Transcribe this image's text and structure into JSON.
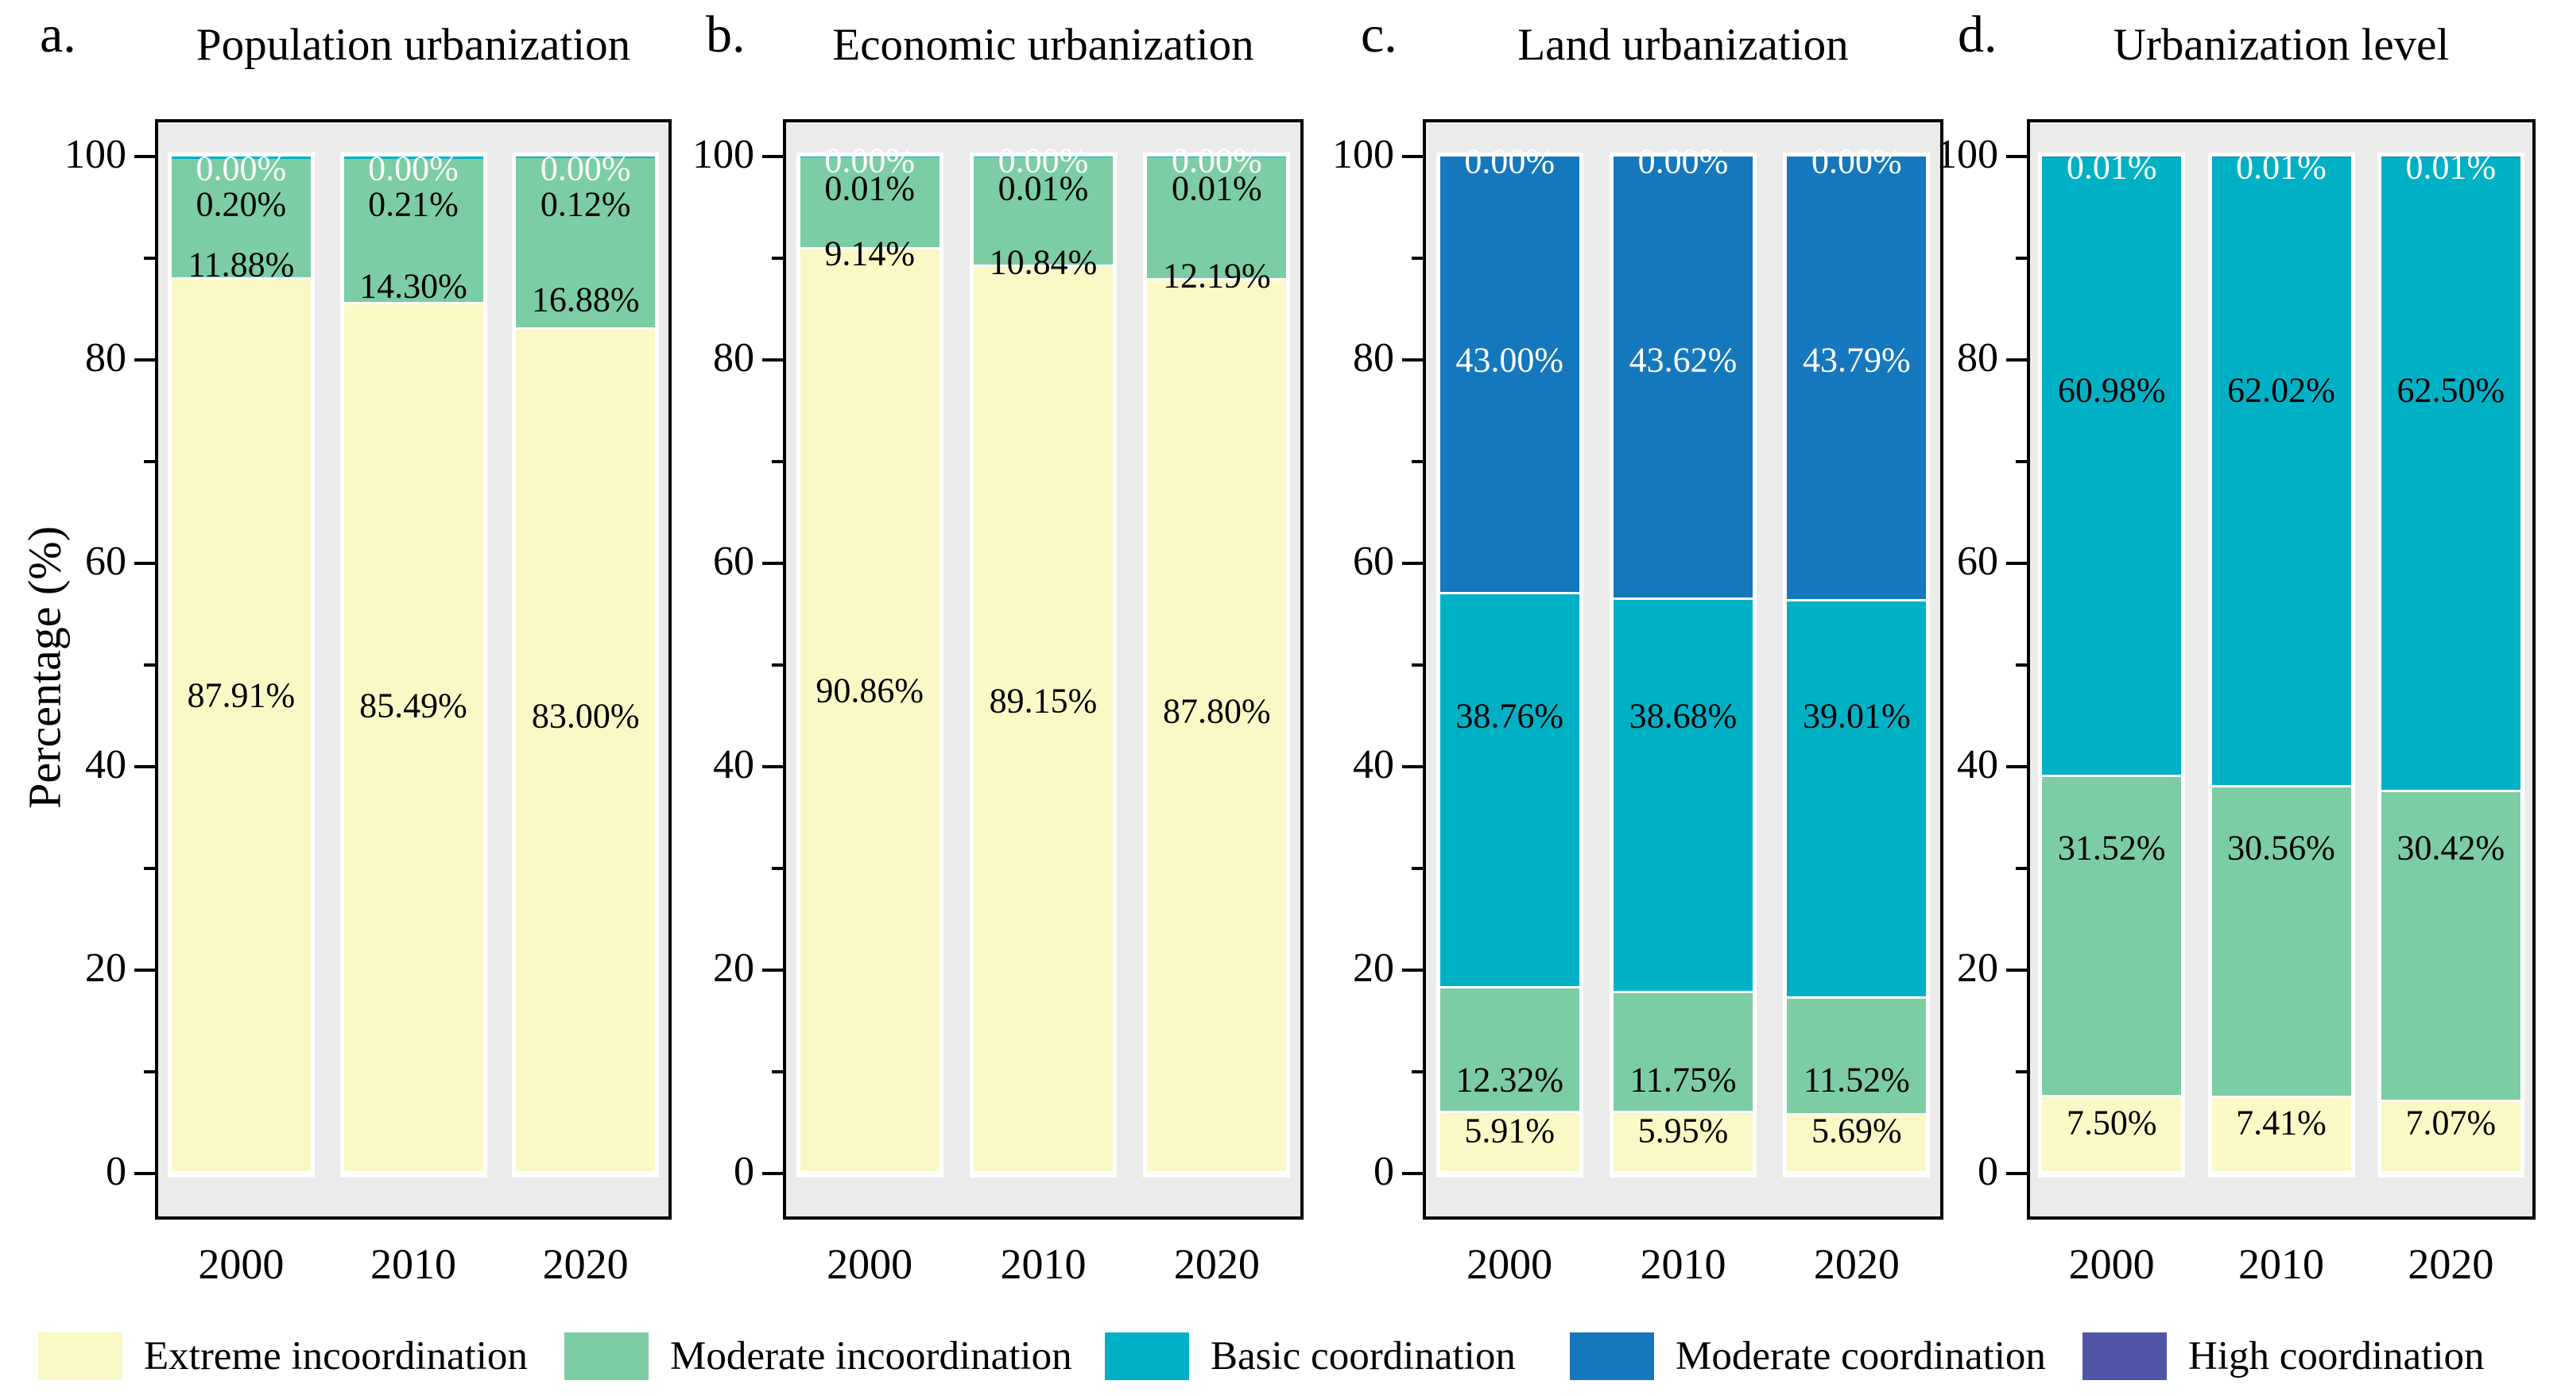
{
  "figure": {
    "y_axis_title": "Percentage (%)",
    "plot_background": "#ebebeb",
    "panel_border_color": "#000000",
    "bar_outline_color": "#ffffff",
    "colors": {
      "extreme_incoordination": "#faf9c6",
      "moderate_incoordination": "#7ccda4",
      "basic_coordination": "#00b1c6",
      "moderate_coordination": "#1678bc",
      "high_coordination": "#4f56a8"
    }
  },
  "chart_data": [
    {
      "type": "bar",
      "stacked": true,
      "panel_letter": "a.",
      "title": "Population urbanization",
      "categories": [
        "2000",
        "2010",
        "2020"
      ],
      "xlabel": "",
      "ylabel": "Percentage (%)",
      "ylim": [
        0,
        100
      ],
      "yticks_major": [
        0,
        20,
        40,
        60,
        80,
        100
      ],
      "yticks_minor": [
        10,
        30,
        50,
        70,
        90
      ],
      "legend_position": "bottom",
      "series": [
        {
          "name": "Extreme incoordination",
          "color_key": "extreme_incoordination",
          "values": [
            87.91,
            85.49,
            83.0
          ]
        },
        {
          "name": "Moderate incoordination",
          "color_key": "moderate_incoordination",
          "values": [
            11.88,
            14.3,
            16.88
          ]
        },
        {
          "name": "Basic coordination",
          "color_key": "basic_coordination",
          "values": [
            0.2,
            0.21,
            0.12
          ]
        },
        {
          "name": "Moderate coordination",
          "color_key": "moderate_coordination",
          "values": [
            0.0,
            0.0,
            0.0
          ]
        },
        {
          "name": "High coordination",
          "color_key": "high_coordination",
          "values": [
            0.0,
            0.0,
            0.0
          ]
        }
      ],
      "bar_labels": [
        [
          {
            "text": "0.00%",
            "color": "#ffffff",
            "pos": 1.2
          },
          {
            "text": "0.20%",
            "color": "#000000",
            "pos": 4.7
          },
          {
            "text": "11.88%",
            "color": "#000000",
            "pos": 10.6
          },
          {
            "text": "87.91%",
            "color": "#000000",
            "pos": 53.0
          }
        ],
        [
          {
            "text": "0.00%",
            "color": "#ffffff",
            "pos": 1.2
          },
          {
            "text": "0.21%",
            "color": "#000000",
            "pos": 4.7
          },
          {
            "text": "14.30%",
            "color": "#000000",
            "pos": 12.7
          },
          {
            "text": "85.49%",
            "color": "#000000",
            "pos": 54.0
          }
        ],
        [
          {
            "text": "0.00%",
            "color": "#ffffff",
            "pos": 1.2
          },
          {
            "text": "0.12%",
            "color": "#000000",
            "pos": 4.7
          },
          {
            "text": "16.88%",
            "color": "#000000",
            "pos": 14.1
          },
          {
            "text": "83.00%",
            "color": "#000000",
            "pos": 55.0
          }
        ]
      ]
    },
    {
      "type": "bar",
      "stacked": true,
      "panel_letter": "b.",
      "title": "Economic urbanization",
      "categories": [
        "2000",
        "2010",
        "2020"
      ],
      "xlabel": "",
      "ylabel": "Percentage (%)",
      "ylim": [
        0,
        100
      ],
      "yticks_major": [
        0,
        20,
        40,
        60,
        80,
        100
      ],
      "yticks_minor": [
        10,
        30,
        50,
        70,
        90
      ],
      "legend_position": "bottom",
      "series": [
        {
          "name": "Extreme incoordination",
          "color_key": "extreme_incoordination",
          "values": [
            90.86,
            89.15,
            87.8
          ]
        },
        {
          "name": "Moderate incoordination",
          "color_key": "moderate_incoordination",
          "values": [
            9.14,
            10.84,
            12.19
          ]
        },
        {
          "name": "Basic coordination",
          "color_key": "basic_coordination",
          "values": [
            0.01,
            0.01,
            0.01
          ]
        },
        {
          "name": "Moderate coordination",
          "color_key": "moderate_coordination",
          "values": [
            0.0,
            0.0,
            0.0
          ]
        },
        {
          "name": "High coordination",
          "color_key": "high_coordination",
          "values": [
            0.0,
            0.0,
            0.0
          ]
        }
      ],
      "bar_labels": [
        [
          {
            "text": "0.00%",
            "color": "#ffffff",
            "pos": 0.4
          },
          {
            "text": "0.01%",
            "color": "#000000",
            "pos": 3.1
          },
          {
            "text": "9.14%",
            "color": "#000000",
            "pos": 9.5
          },
          {
            "text": "90.86%",
            "color": "#000000",
            "pos": 52.5
          }
        ],
        [
          {
            "text": "0.00%",
            "color": "#ffffff",
            "pos": 0.4
          },
          {
            "text": "0.01%",
            "color": "#000000",
            "pos": 3.1
          },
          {
            "text": "10.84%",
            "color": "#000000",
            "pos": 10.4
          },
          {
            "text": "89.15%",
            "color": "#000000",
            "pos": 53.5
          }
        ],
        [
          {
            "text": "0.00%",
            "color": "#ffffff",
            "pos": 0.4
          },
          {
            "text": "0.01%",
            "color": "#000000",
            "pos": 3.1
          },
          {
            "text": "12.19%",
            "color": "#000000",
            "pos": 11.7
          },
          {
            "text": "87.80%",
            "color": "#000000",
            "pos": 54.5
          }
        ]
      ]
    },
    {
      "type": "bar",
      "stacked": true,
      "panel_letter": "c.",
      "title": "Land urbanization",
      "categories": [
        "2000",
        "2010",
        "2020"
      ],
      "xlabel": "",
      "ylabel": "Percentage (%)",
      "ylim": [
        0,
        100
      ],
      "yticks_major": [
        0,
        20,
        40,
        60,
        80,
        100
      ],
      "yticks_minor": [
        10,
        30,
        50,
        70,
        90
      ],
      "legend_position": "bottom",
      "series": [
        {
          "name": "Extreme incoordination",
          "color_key": "extreme_incoordination",
          "values": [
            5.91,
            5.95,
            5.69
          ]
        },
        {
          "name": "Moderate incoordination",
          "color_key": "moderate_incoordination",
          "values": [
            12.32,
            11.75,
            11.52
          ]
        },
        {
          "name": "Basic coordination",
          "color_key": "basic_coordination",
          "values": [
            38.76,
            38.68,
            39.01
          ]
        },
        {
          "name": "Moderate coordination",
          "color_key": "moderate_coordination",
          "values": [
            43.0,
            43.62,
            43.79
          ]
        },
        {
          "name": "High coordination",
          "color_key": "high_coordination",
          "values": [
            0.0,
            0.0,
            0.0
          ]
        }
      ],
      "bar_labels": [
        [
          {
            "text": "0.00%",
            "color": "#ffffff",
            "pos": 0.5
          },
          {
            "text": "43.00%",
            "color": "#ffffff",
            "pos": 20.0
          },
          {
            "text": "38.76%",
            "color": "#000000",
            "pos": 55.0
          },
          {
            "text": "12.32%",
            "color": "#000000",
            "pos": 90.8
          },
          {
            "text": "5.91%",
            "color": "#000000",
            "pos": 95.8
          }
        ],
        [
          {
            "text": "0.00%",
            "color": "#ffffff",
            "pos": 0.5
          },
          {
            "text": "43.62%",
            "color": "#ffffff",
            "pos": 20.0
          },
          {
            "text": "38.68%",
            "color": "#000000",
            "pos": 55.0
          },
          {
            "text": "11.75%",
            "color": "#000000",
            "pos": 90.8
          },
          {
            "text": "5.95%",
            "color": "#000000",
            "pos": 95.8
          }
        ],
        [
          {
            "text": "0.00%",
            "color": "#ffffff",
            "pos": 0.5
          },
          {
            "text": "43.79%",
            "color": "#ffffff",
            "pos": 20.0
          },
          {
            "text": "39.01%",
            "color": "#000000",
            "pos": 55.0
          },
          {
            "text": "11.52%",
            "color": "#000000",
            "pos": 90.8
          },
          {
            "text": "5.69%",
            "color": "#000000",
            "pos": 95.8
          }
        ]
      ]
    },
    {
      "type": "bar",
      "stacked": true,
      "panel_letter": "d.",
      "title": "Urbanization level",
      "categories": [
        "2000",
        "2010",
        "2020"
      ],
      "xlabel": "",
      "ylabel": "Percentage (%)",
      "ylim": [
        0,
        100
      ],
      "yticks_major": [
        0,
        20,
        40,
        60,
        80,
        100
      ],
      "yticks_minor": [
        10,
        30,
        50,
        70,
        90
      ],
      "legend_position": "bottom",
      "series": [
        {
          "name": "Extreme incoordination",
          "color_key": "extreme_incoordination",
          "values": [
            7.5,
            7.41,
            7.07
          ]
        },
        {
          "name": "Moderate incoordination",
          "color_key": "moderate_incoordination",
          "values": [
            31.52,
            30.56,
            30.42
          ]
        },
        {
          "name": "Basic coordination",
          "color_key": "basic_coordination",
          "values": [
            60.98,
            62.02,
            62.5
          ]
        },
        {
          "name": "Moderate coordination",
          "color_key": "moderate_coordination",
          "values": [
            0.01,
            0.01,
            0.01
          ]
        },
        {
          "name": "High coordination",
          "color_key": "high_coordination",
          "values": [
            0.0,
            0.0,
            0.0
          ]
        }
      ],
      "bar_labels": [
        [
          {
            "text": "0.01%",
            "color": "#ffffff",
            "pos": 1.0
          },
          {
            "text": "60.98%",
            "color": "#000000",
            "pos": 23.0
          },
          {
            "text": "31.52%",
            "color": "#000000",
            "pos": 68.0
          },
          {
            "text": "7.50%",
            "color": "#000000",
            "pos": 95.0
          }
        ],
        [
          {
            "text": "0.01%",
            "color": "#ffffff",
            "pos": 1.0
          },
          {
            "text": "62.02%",
            "color": "#000000",
            "pos": 23.0
          },
          {
            "text": "30.56%",
            "color": "#000000",
            "pos": 68.0
          },
          {
            "text": "7.41%",
            "color": "#000000",
            "pos": 95.0
          }
        ],
        [
          {
            "text": "0.01%",
            "color": "#ffffff",
            "pos": 1.0
          },
          {
            "text": "62.50%",
            "color": "#000000",
            "pos": 23.0
          },
          {
            "text": "30.42%",
            "color": "#000000",
            "pos": 68.0
          },
          {
            "text": "7.07%",
            "color": "#000000",
            "pos": 95.0
          }
        ]
      ]
    }
  ],
  "legend": {
    "items": [
      {
        "label": "Extreme incoordination",
        "color_key": "extreme_incoordination"
      },
      {
        "label": "Moderate incoordination",
        "color_key": "moderate_incoordination"
      },
      {
        "label": "Basic coordination",
        "color_key": "basic_coordination"
      },
      {
        "label": "Moderate coordination",
        "color_key": "moderate_coordination"
      },
      {
        "label": "High coordination",
        "color_key": "high_coordination"
      }
    ]
  }
}
